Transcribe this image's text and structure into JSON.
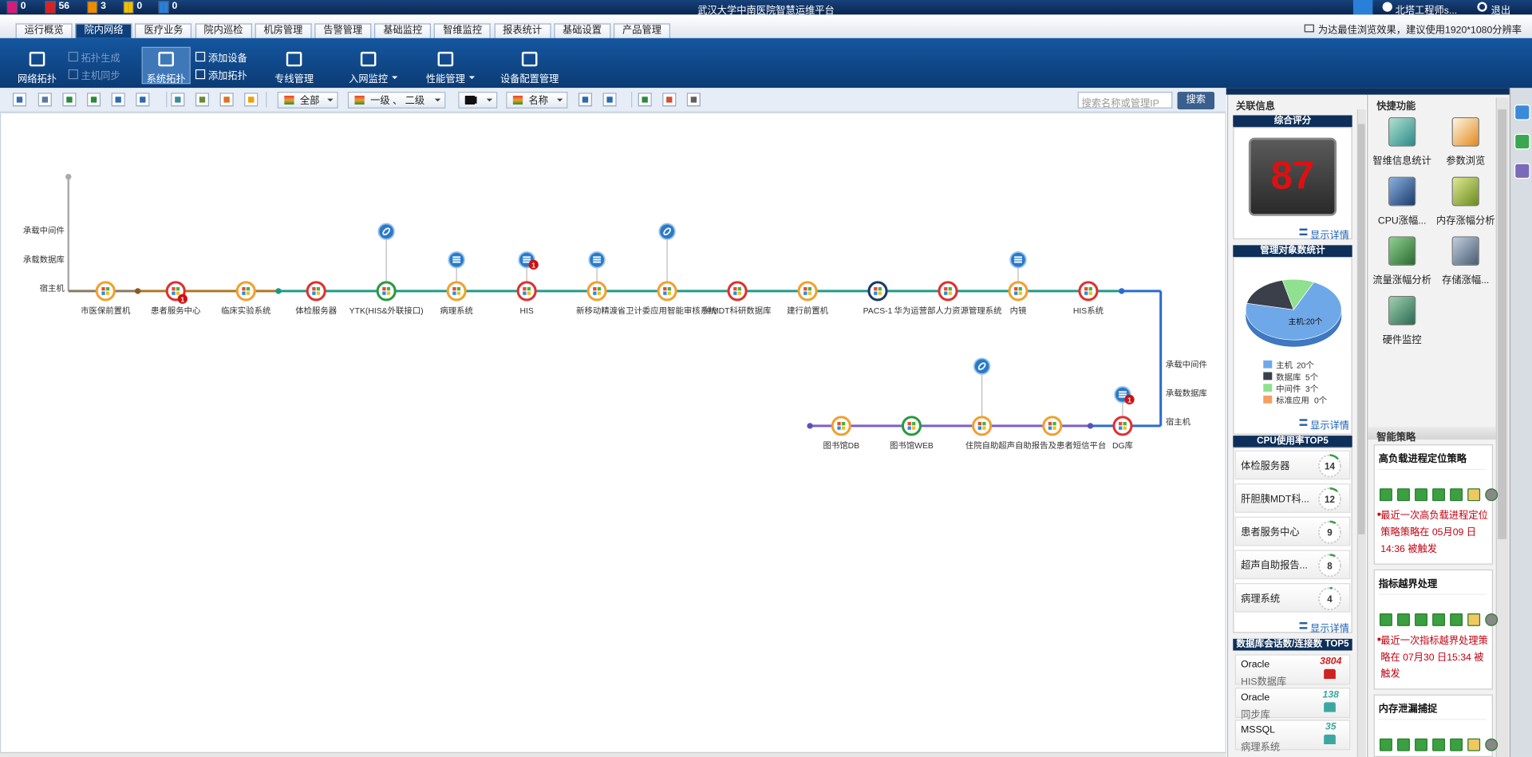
{
  "header": {
    "alerts": [
      0,
      56,
      3,
      0,
      0
    ],
    "title": "武汉大学中南医院智慧运维平台",
    "user": "北塔工程师s...",
    "logout": "退出",
    "notice": "为达最佳浏览效果，建议使用1920*1080分辨率"
  },
  "tabs": [
    "运行概览",
    "院内网络",
    "医疗业务",
    "院内巡检",
    "机房管理",
    "告警管理",
    "基础监控",
    "智维监控",
    "报表统计",
    "基础设置",
    "产品管理"
  ],
  "toolbar": [
    "网络拓扑",
    "拓扑生成",
    "主机同步",
    "系统拓扑",
    "添加设备",
    "添加拓扑",
    "专线管理",
    "入网监控",
    "性能管理",
    "设备配置管理"
  ],
  "filters": {
    "all": "全部",
    "levels": "一级 、 二级",
    "name": "名称",
    "search_placeholder": "搜索名称或管理IP",
    "search": "搜索"
  },
  "topology": {
    "left_labels": [
      "承载中间件",
      "承载数据库",
      "宿主机"
    ],
    "right_labels": [
      "承载中间件",
      "承载数据库",
      "宿主机"
    ],
    "top_nodes": [
      {
        "label": "市医保前置机",
        "color": "#f0a030"
      },
      {
        "label": "患者服务中心",
        "color": "#e03030",
        "badge": 1
      },
      {
        "label": "临床实验系统",
        "color": "#f0a030"
      },
      {
        "label": "体检服务器",
        "color": "#e03030"
      },
      {
        "label": "YTK(HIS&外联接口)",
        "color": "#2a9a40",
        "attach": "link"
      },
      {
        "label": "病理系统",
        "color": "#f0a030",
        "attach": "db"
      },
      {
        "label": "HIS",
        "color": "#e03030",
        "attach": "db",
        "attach_badge": 1
      },
      {
        "label": "新移动精渡",
        "color": "#f0a030",
        "attach": "db"
      },
      {
        "label": "省卫计委应用智能审核系统",
        "color": "#f0a030",
        "attach": "link"
      },
      {
        "label": "肿MDT科研数据库",
        "color": "#e03030"
      },
      {
        "label": "建行前置机",
        "color": "#f0a030"
      },
      {
        "label": "PACS-1",
        "color": "#1a3a6a"
      },
      {
        "label": "华为运营部人力资源管理系统",
        "color": "#e03030"
      },
      {
        "label": "内镜",
        "color": "#f0a030",
        "attach": "db"
      },
      {
        "label": "HIS系统",
        "color": "#e03030"
      }
    ],
    "bottom_nodes": [
      {
        "label": "图书馆DB",
        "color": "#f0a030"
      },
      {
        "label": "图书馆WEB",
        "color": "#2a9a40"
      },
      {
        "label": "住院自助",
        "color": "#f0a030",
        "attach": "link"
      },
      {
        "label": "超声自助报告及患者短信平台",
        "color": "#f0a030"
      },
      {
        "label": "DG库",
        "color": "#e03030",
        "attach": "db",
        "attach_badge": 1
      }
    ]
  },
  "side": {
    "related_title": "关联信息",
    "score": {
      "title": "综合评分",
      "value": 87,
      "detail": "显示详情"
    },
    "objects": {
      "title": "管理对象数统计",
      "callout": "主机:20个",
      "detail": "显示详情",
      "series": [
        {
          "name": "主机",
          "value": 20,
          "label": "20个",
          "color": "#6fa8e8"
        },
        {
          "name": "数据库",
          "value": 5,
          "label": "5个",
          "color": "#3a3f4a"
        },
        {
          "name": "中间件",
          "value": 3,
          "label": "3个",
          "color": "#8fe08f"
        },
        {
          "name": "标准应用",
          "value": 0,
          "label": "0个",
          "color": "#f5a060"
        }
      ]
    },
    "cpu": {
      "title": "CPU使用率TOP5",
      "detail": "显示详情",
      "items": [
        {
          "name": "体检服务器",
          "value": 14
        },
        {
          "name": "肝胆胰MDT科...",
          "value": 12
        },
        {
          "name": "患者服务中心",
          "value": 9
        },
        {
          "name": "超声自助报告...",
          "value": 8
        },
        {
          "name": "病理系统",
          "value": 4
        }
      ]
    },
    "db": {
      "title": "数据库会话数/连接数 TOP5",
      "items": [
        {
          "type": "Oracle",
          "name": "HIS数据库",
          "value": 3804,
          "color": "#d02020"
        },
        {
          "type": "Oracle",
          "name": "同步库",
          "value": 138,
          "color": "#3aa8a0"
        },
        {
          "type": "MSSQL",
          "name": "病理系统",
          "value": 35,
          "color": "#3aa8a0"
        }
      ]
    }
  },
  "quick": {
    "title": "快捷功能",
    "items": [
      "智维信息统计",
      "参数浏览",
      "CPU涨幅...",
      "内存涨幅分析",
      "流量涨幅分析",
      "存储涨幅...",
      "硬件监控"
    ]
  },
  "strategy": {
    "title": "智能策略",
    "cards": [
      {
        "title": "高负载进程定位策略",
        "text": "最近一次高负载进程定位策略策略在 05月09 日14:36 被触发"
      },
      {
        "title": "指标越界处理",
        "text": "最近一次指标越界处理策略在 07月30 日15:34 被触发"
      },
      {
        "title": "内存泄漏捕捉"
      }
    ]
  }
}
